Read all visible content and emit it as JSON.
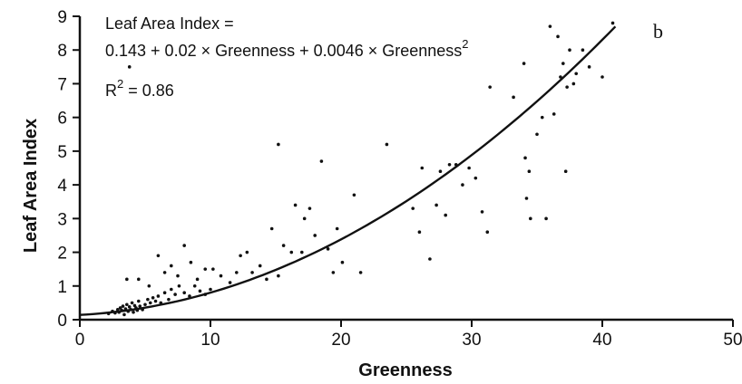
{
  "chart_data": {
    "type": "scatter",
    "panel_label": "b",
    "xlabel": "Greenness",
    "ylabel": "Leaf Area Index",
    "xlim": [
      0,
      50
    ],
    "ylim": [
      0,
      9
    ],
    "x_ticks": [
      "0",
      "10",
      "20",
      "30",
      "40",
      "50"
    ],
    "y_ticks": [
      "0",
      "1",
      "2",
      "3",
      "4",
      "5",
      "6",
      "7",
      "8",
      "9"
    ],
    "grid": false,
    "annotation": {
      "line1": "Leaf Area Index =",
      "line2": "0.143 + 0.02 × Greenness + 0.0046 × Greenness",
      "line2_superscript": "2",
      "r2_label": "R",
      "r2_superscript": "2",
      "r2_value": " = 0.86"
    },
    "fit_curve": {
      "intercept": 0.143,
      "linear": 0.02,
      "quadratic": 0.0046,
      "x_range": [
        0,
        41
      ]
    },
    "points": [
      [
        2.2,
        0.18
      ],
      [
        2.5,
        0.25
      ],
      [
        2.7,
        0.2
      ],
      [
        2.9,
        0.3
      ],
      [
        3.0,
        0.22
      ],
      [
        3.1,
        0.35
      ],
      [
        3.2,
        0.28
      ],
      [
        3.3,
        0.4
      ],
      [
        3.4,
        0.15
      ],
      [
        3.5,
        0.32
      ],
      [
        3.6,
        0.45
      ],
      [
        3.7,
        0.25
      ],
      [
        3.8,
        0.38
      ],
      [
        3.9,
        0.3
      ],
      [
        4.0,
        0.5
      ],
      [
        4.1,
        0.22
      ],
      [
        4.2,
        0.42
      ],
      [
        4.3,
        0.35
      ],
      [
        4.4,
        0.28
      ],
      [
        4.5,
        0.55
      ],
      [
        4.6,
        0.4
      ],
      [
        4.8,
        0.3
      ],
      [
        5.0,
        0.45
      ],
      [
        5.2,
        0.6
      ],
      [
        5.4,
        0.5
      ],
      [
        5.6,
        0.65
      ],
      [
        5.8,
        0.55
      ],
      [
        6.0,
        0.7
      ],
      [
        6.2,
        0.5
      ],
      [
        6.5,
        0.8
      ],
      [
        6.8,
        0.6
      ],
      [
        7.0,
        0.9
      ],
      [
        7.3,
        0.75
      ],
      [
        7.6,
        1.0
      ],
      [
        8.0,
        0.8
      ],
      [
        8.4,
        0.7
      ],
      [
        8.8,
        1.0
      ],
      [
        9.2,
        0.85
      ],
      [
        9.6,
        0.75
      ],
      [
        10.0,
        0.9
      ],
      [
        3.6,
        1.2
      ],
      [
        4.5,
        1.2
      ],
      [
        5.3,
        1.0
      ],
      [
        6.0,
        1.9
      ],
      [
        6.5,
        1.4
      ],
      [
        7.0,
        1.6
      ],
      [
        7.5,
        1.3
      ],
      [
        8.0,
        2.2
      ],
      [
        8.5,
        1.7
      ],
      [
        9.0,
        1.2
      ],
      [
        9.6,
        1.5
      ],
      [
        10.2,
        1.5
      ],
      [
        10.8,
        1.3
      ],
      [
        11.5,
        1.1
      ],
      [
        12.0,
        1.4
      ],
      [
        12.3,
        1.9
      ],
      [
        12.8,
        2.0
      ],
      [
        13.2,
        1.4
      ],
      [
        13.8,
        1.6
      ],
      [
        14.3,
        1.2
      ],
      [
        14.7,
        2.7
      ],
      [
        15.2,
        1.3
      ],
      [
        15.6,
        2.2
      ],
      [
        15.2,
        5.2
      ],
      [
        16.2,
        2.0
      ],
      [
        16.5,
        3.4
      ],
      [
        17.0,
        2.0
      ],
      [
        17.2,
        3.0
      ],
      [
        17.6,
        3.3
      ],
      [
        18.0,
        2.5
      ],
      [
        18.5,
        4.7
      ],
      [
        19.0,
        2.1
      ],
      [
        19.4,
        1.4
      ],
      [
        19.7,
        2.7
      ],
      [
        20.1,
        1.7
      ],
      [
        21.0,
        3.7
      ],
      [
        21.5,
        1.4
      ],
      [
        23.5,
        5.2
      ],
      [
        25.5,
        3.3
      ],
      [
        26.0,
        2.6
      ],
      [
        26.2,
        4.5
      ],
      [
        26.8,
        1.8
      ],
      [
        27.3,
        3.4
      ],
      [
        27.6,
        4.4
      ],
      [
        28.0,
        3.1
      ],
      [
        28.3,
        4.6
      ],
      [
        28.8,
        4.6
      ],
      [
        29.3,
        4.0
      ],
      [
        29.8,
        4.5
      ],
      [
        30.3,
        4.2
      ],
      [
        30.8,
        3.2
      ],
      [
        31.2,
        2.6
      ],
      [
        31.4,
        6.9
      ],
      [
        33.2,
        6.6
      ],
      [
        34.0,
        7.6
      ],
      [
        34.1,
        4.8
      ],
      [
        34.2,
        3.6
      ],
      [
        34.4,
        4.4
      ],
      [
        34.5,
        3.0
      ],
      [
        35.0,
        5.5
      ],
      [
        35.4,
        6.0
      ],
      [
        35.7,
        3.0
      ],
      [
        36.0,
        8.7
      ],
      [
        36.3,
        6.1
      ],
      [
        36.6,
        8.4
      ],
      [
        36.8,
        7.2
      ],
      [
        37.0,
        7.6
      ],
      [
        37.2,
        4.4
      ],
      [
        37.3,
        6.9
      ],
      [
        37.5,
        8.0
      ],
      [
        37.8,
        7.0
      ],
      [
        38.0,
        7.3
      ],
      [
        38.5,
        8.0
      ],
      [
        39.0,
        7.5
      ],
      [
        40.0,
        7.2
      ],
      [
        40.8,
        8.8
      ],
      [
        3.8,
        7.5
      ]
    ]
  }
}
